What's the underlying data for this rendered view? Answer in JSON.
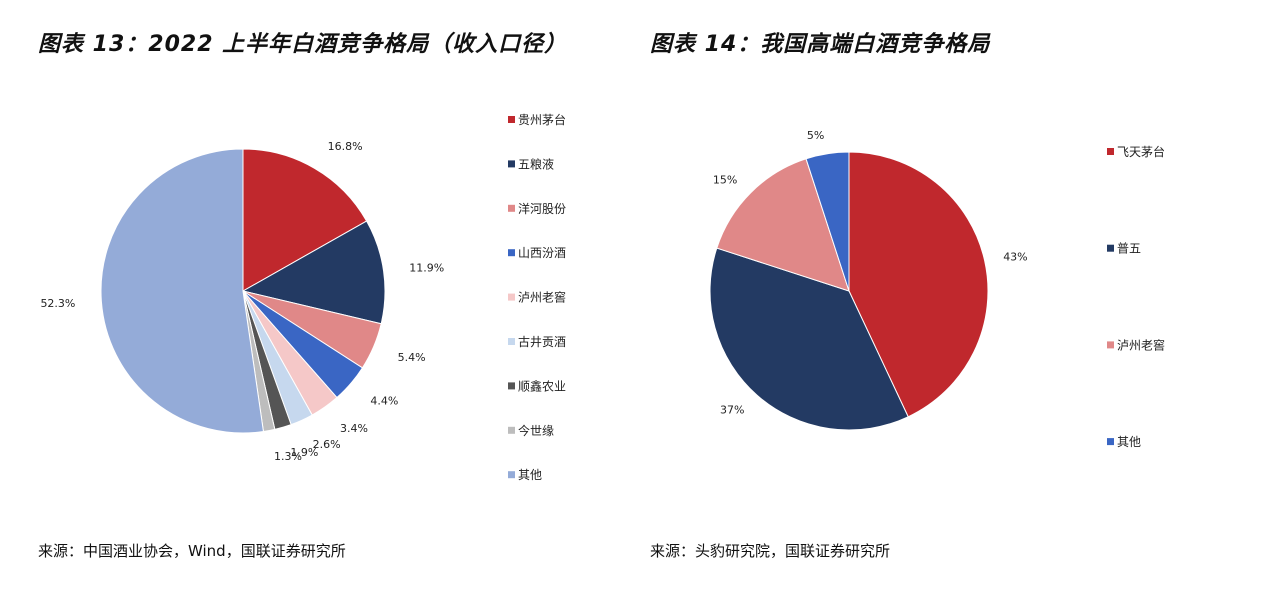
{
  "left": {
    "title": "图表 13：2022 上半年白酒竞争格局（收入口径）",
    "source": "来源：中国酒业协会，Wind，国联证券研究所"
  },
  "right": {
    "title": "图表 14：我国高端白酒竞争格局",
    "source": "来源：头豹研究院，国联证券研究所"
  },
  "chart_data": [
    {
      "type": "pie",
      "title": "2022 上半年白酒竞争格局（收入口径）",
      "categories": [
        "贵州茅台",
        "五粮液",
        "洋河股份",
        "山西汾酒",
        "泸州老窖",
        "古井贡酒",
        "顺鑫农业",
        "今世缘",
        "其他"
      ],
      "values": [
        16.8,
        11.9,
        5.4,
        4.4,
        3.4,
        2.6,
        1.9,
        1.3,
        52.3
      ],
      "labels": [
        "16.8%",
        "11.9%",
        "5.4%",
        "4.4%",
        "3.4%",
        "2.6%",
        "1.9%",
        "1.3%",
        "52.3%"
      ],
      "colors": [
        "#c0282d",
        "#233a63",
        "#e08888",
        "#3a66c4",
        "#f5c8c8",
        "#c6d8ee",
        "#555555",
        "#bdbdbd",
        "#94abd8"
      ],
      "legend_position": "right"
    },
    {
      "type": "pie",
      "title": "我国高端白酒竞争格局",
      "categories": [
        "飞天茅台",
        "普五",
        "泸州老窖",
        "其他"
      ],
      "values": [
        43,
        37,
        15,
        5
      ],
      "labels": [
        "43%",
        "37%",
        "15%",
        "5%"
      ],
      "colors": [
        "#c0282d",
        "#233a63",
        "#e08888",
        "#3a66c4"
      ],
      "legend_position": "right"
    }
  ]
}
